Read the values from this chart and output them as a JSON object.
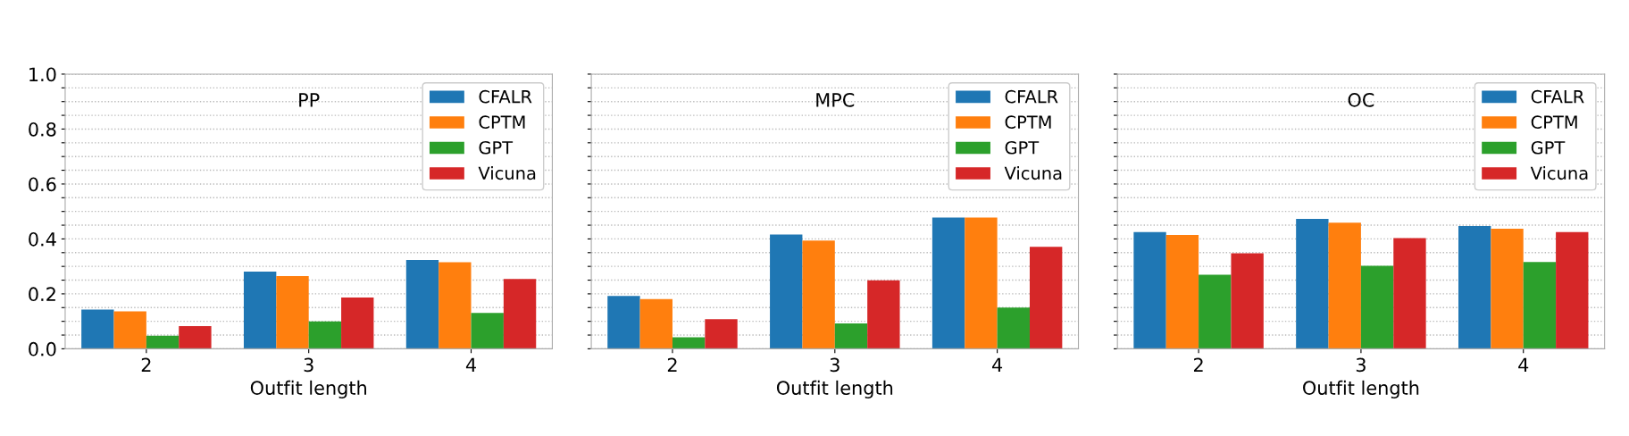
{
  "chart_data": [
    {
      "type": "bar",
      "title": "PP",
      "xlabel": "Outfit length",
      "categories": [
        "2",
        "3",
        "4"
      ],
      "ylim": [
        0,
        1
      ],
      "yticks": [
        {
          "value": 0,
          "label": "0.0"
        },
        {
          "value": 0.05,
          "label": null
        },
        {
          "value": 0.1,
          "label": null
        },
        {
          "value": 0.15,
          "label": null
        },
        {
          "value": 0.2,
          "label": "0.2"
        },
        {
          "value": 0.25,
          "label": null
        },
        {
          "value": 0.3,
          "label": null
        },
        {
          "value": 0.35,
          "label": null
        },
        {
          "value": 0.4,
          "label": "0.4"
        },
        {
          "value": 0.45,
          "label": null
        },
        {
          "value": 0.5,
          "label": null
        },
        {
          "value": 0.55,
          "label": null
        },
        {
          "value": 0.6,
          "label": "0.6"
        },
        {
          "value": 0.65,
          "label": null
        },
        {
          "value": 0.7,
          "label": null
        },
        {
          "value": 0.75,
          "label": null
        },
        {
          "value": 0.8,
          "label": "0.8"
        },
        {
          "value": 0.85,
          "label": null
        },
        {
          "value": 0.9,
          "label": null
        },
        {
          "value": 0.95,
          "label": null
        },
        {
          "value": 1.0,
          "label": "1.0"
        }
      ],
      "grid": "y",
      "legend": "top right",
      "series": [
        {
          "name": "CFALR",
          "color": "#1f77b4",
          "values": [
            0.143,
            0.281,
            0.323
          ]
        },
        {
          "name": "CPTM",
          "color": "#ff7f0e",
          "values": [
            0.136,
            0.265,
            0.315
          ]
        },
        {
          "name": "GPT",
          "color": "#2ca02c",
          "values": [
            0.048,
            0.1,
            0.131
          ]
        },
        {
          "name": "Vicuna",
          "color": "#d62728",
          "values": [
            0.083,
            0.187,
            0.254
          ]
        }
      ]
    },
    {
      "type": "bar",
      "title": "MPC",
      "xlabel": "Outfit length",
      "categories": [
        "2",
        "3",
        "4"
      ],
      "ylim": [
        0,
        1
      ],
      "yticks": [
        {
          "value": 0,
          "label": null
        },
        {
          "value": 0.05,
          "label": null
        },
        {
          "value": 0.1,
          "label": null
        },
        {
          "value": 0.15,
          "label": null
        },
        {
          "value": 0.2,
          "label": null
        },
        {
          "value": 0.25,
          "label": null
        },
        {
          "value": 0.3,
          "label": null
        },
        {
          "value": 0.35,
          "label": null
        },
        {
          "value": 0.4,
          "label": null
        },
        {
          "value": 0.45,
          "label": null
        },
        {
          "value": 0.5,
          "label": null
        },
        {
          "value": 0.55,
          "label": null
        },
        {
          "value": 0.6,
          "label": null
        },
        {
          "value": 0.65,
          "label": null
        },
        {
          "value": 0.7,
          "label": null
        },
        {
          "value": 0.75,
          "label": null
        },
        {
          "value": 0.8,
          "label": null
        },
        {
          "value": 0.85,
          "label": null
        },
        {
          "value": 0.9,
          "label": null
        },
        {
          "value": 0.95,
          "label": null
        },
        {
          "value": 1.0,
          "label": null
        }
      ],
      "tick_labels": "x",
      "grid": "y",
      "legend": "top right",
      "series": [
        {
          "name": "CFALR",
          "color": "#1f77b4",
          "values": [
            0.192,
            0.416,
            0.478
          ]
        },
        {
          "name": "CPTM",
          "color": "#ff7f0e",
          "values": [
            0.181,
            0.394,
            0.478
          ]
        },
        {
          "name": "GPT",
          "color": "#2ca02c",
          "values": [
            0.042,
            0.092,
            0.15
          ]
        },
        {
          "name": "Vicuna",
          "color": "#d62728",
          "values": [
            0.108,
            0.249,
            0.371
          ]
        }
      ]
    },
    {
      "type": "bar",
      "title": "OC",
      "xlabel": "Outfit length",
      "categories": [
        "2",
        "3",
        "4"
      ],
      "ylim": [
        0,
        1
      ],
      "yticks": [
        {
          "value": 0,
          "label": null
        },
        {
          "value": 0.05,
          "label": null
        },
        {
          "value": 0.1,
          "label": null
        },
        {
          "value": 0.15,
          "label": null
        },
        {
          "value": 0.2,
          "label": null
        },
        {
          "value": 0.25,
          "label": null
        },
        {
          "value": 0.3,
          "label": null
        },
        {
          "value": 0.35,
          "label": null
        },
        {
          "value": 0.4,
          "label": null
        },
        {
          "value": 0.45,
          "label": null
        },
        {
          "value": 0.5,
          "label": null
        },
        {
          "value": 0.55,
          "label": null
        },
        {
          "value": 0.6,
          "label": null
        },
        {
          "value": 0.65,
          "label": null
        },
        {
          "value": 0.7,
          "label": null
        },
        {
          "value": 0.75,
          "label": null
        },
        {
          "value": 0.8,
          "label": null
        },
        {
          "value": 0.85,
          "label": null
        },
        {
          "value": 0.9,
          "label": null
        },
        {
          "value": 0.95,
          "label": null
        },
        {
          "value": 1.0,
          "label": null
        }
      ],
      "tick_labels": "x",
      "grid": "y",
      "legend": "top right",
      "series": [
        {
          "name": "CFALR",
          "color": "#1f77b4",
          "values": [
            0.425,
            0.473,
            0.447
          ]
        },
        {
          "name": "CPTM",
          "color": "#ff7f0e",
          "values": [
            0.414,
            0.459,
            0.437
          ]
        },
        {
          "name": "GPT",
          "color": "#2ca02c",
          "values": [
            0.27,
            0.302,
            0.316
          ]
        },
        {
          "name": "Vicuna",
          "color": "#d62728",
          "values": [
            0.348,
            0.403,
            0.425
          ]
        }
      ]
    }
  ]
}
